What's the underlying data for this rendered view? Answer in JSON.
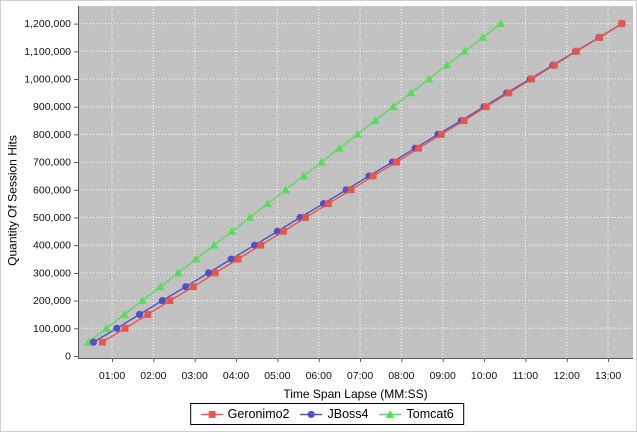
{
  "chart_data": {
    "type": "line",
    "title": "",
    "xlabel": "Time Span Lapse (MM:SS)",
    "ylabel": "Quantity Of Session Hits",
    "x_tick_labels": [
      "01:00",
      "02:00",
      "03:00",
      "04:00",
      "05:00",
      "06:00",
      "07:00",
      "08:00",
      "09:00",
      "10:00",
      "11:00",
      "12:00",
      "13:00"
    ],
    "x_tick_seconds": [
      60,
      120,
      180,
      240,
      300,
      360,
      420,
      480,
      540,
      600,
      660,
      720,
      780
    ],
    "y_tick_labels": [
      "0",
      "100,000",
      "200,000",
      "300,000",
      "400,000",
      "500,000",
      "600,000",
      "700,000",
      "800,000",
      "900,000",
      "1,000,000",
      "1,100,000",
      "1,200,000"
    ],
    "y_tick_values": [
      0,
      100000,
      200000,
      300000,
      400000,
      500000,
      600000,
      700000,
      800000,
      900000,
      1000000,
      1100000,
      1200000
    ],
    "ylim": [
      0,
      1260000
    ],
    "grid": true,
    "legend_position": "bottom-center",
    "plot_background": "#c2c2c2",
    "grid_color": "#ffffff",
    "axis_color": "#5a5a5a",
    "tick_label_color": "#111111",
    "sample_interval_hits": 50000,
    "hit_levels": [
      50000,
      100000,
      150000,
      200000,
      250000,
      300000,
      350000,
      400000,
      450000,
      500000,
      550000,
      600000,
      650000,
      700000,
      750000,
      800000,
      850000,
      900000,
      950000,
      1000000,
      1050000,
      1100000,
      1150000,
      1200000
    ],
    "series": [
      {
        "name": "Geronimo2",
        "color": "#e4564e",
        "marker": "square",
        "times_seconds": [
          46,
          79,
          112,
          144,
          178,
          210,
          243,
          276,
          309,
          341,
          374,
          407,
          439,
          473,
          505,
          538,
          571,
          603,
          636,
          669,
          702,
          734,
          768,
          800
        ],
        "hits": [
          50000,
          100000,
          150000,
          200000,
          250000,
          300000,
          350000,
          400000,
          450000,
          500000,
          550000,
          600000,
          650000,
          700000,
          750000,
          800000,
          850000,
          900000,
          950000,
          1000000,
          1050000,
          1100000,
          1150000,
          1200000
        ]
      },
      {
        "name": "JBoss4",
        "color": "#4f51c8",
        "marker": "circle",
        "times_seconds": [
          33,
          67,
          100,
          133,
          167,
          200,
          233,
          267,
          300,
          333,
          367,
          400,
          433,
          467,
          500,
          533,
          567,
          600,
          633,
          667,
          700,
          733,
          767,
          800
        ],
        "hits": [
          50000,
          100000,
          150000,
          200000,
          250000,
          300000,
          350000,
          400000,
          450000,
          500000,
          550000,
          600000,
          650000,
          700000,
          750000,
          800000,
          850000,
          900000,
          950000,
          1000000,
          1050000,
          1100000,
          1150000,
          1200000
        ]
      },
      {
        "name": "Tomcat6",
        "color": "#58dd5b",
        "marker": "triangle-up",
        "times_seconds": [
          26,
          52,
          78,
          104,
          130,
          156,
          182,
          208,
          234,
          260,
          286,
          312,
          338,
          364,
          390,
          416,
          442,
          468,
          494,
          520,
          546,
          572,
          598,
          624
        ],
        "hits": [
          50000,
          100000,
          150000,
          200000,
          250000,
          300000,
          350000,
          400000,
          450000,
          500000,
          550000,
          600000,
          650000,
          700000,
          750000,
          800000,
          850000,
          900000,
          950000,
          1000000,
          1050000,
          1100000,
          1150000,
          1200000
        ]
      }
    ]
  }
}
